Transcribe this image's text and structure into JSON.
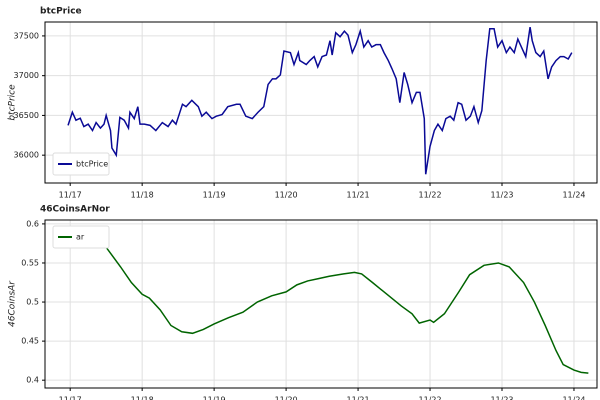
{
  "chart_data": [
    {
      "type": "line",
      "title": "btcPrice",
      "y_label": "btcPrice",
      "legend": "lower left",
      "grid": true,
      "xlim": [
        -0.35,
        7.32
      ],
      "xticks": [
        {
          "value": 0,
          "label": "11/17"
        },
        {
          "value": 1,
          "label": "11/18"
        },
        {
          "value": 2,
          "label": "11/19"
        },
        {
          "value": 3,
          "label": "11/20"
        },
        {
          "value": 4,
          "label": "11/21"
        },
        {
          "value": 5,
          "label": "11/22"
        },
        {
          "value": 6,
          "label": "11/23"
        },
        {
          "value": 7,
          "label": "11/24"
        }
      ],
      "ylim": [
        35650,
        37675
      ],
      "yticks": [
        36000,
        36500,
        37000,
        37500
      ],
      "x": [
        -0.03,
        0.03,
        0.08,
        0.14,
        0.19,
        0.25,
        0.31,
        0.36,
        0.42,
        0.47,
        0.5,
        0.56,
        0.58,
        0.64,
        0.69,
        0.75,
        0.81,
        0.83,
        0.89,
        0.94,
        0.97,
        1.03,
        1.11,
        1.19,
        1.28,
        1.36,
        1.42,
        1.47,
        1.56,
        1.61,
        1.69,
        1.78,
        1.83,
        1.89,
        1.97,
        2.03,
        2.11,
        2.19,
        2.31,
        2.36,
        2.44,
        2.53,
        2.61,
        2.69,
        2.75,
        2.81,
        2.86,
        2.92,
        2.97,
        3.06,
        3.11,
        3.17,
        3.19,
        3.28,
        3.33,
        3.39,
        3.44,
        3.5,
        3.56,
        3.61,
        3.64,
        3.69,
        3.75,
        3.81,
        3.86,
        3.92,
        3.97,
        4.03,
        4.08,
        4.14,
        4.19,
        4.25,
        4.31,
        4.36,
        4.42,
        4.47,
        4.53,
        4.58,
        4.64,
        4.69,
        4.75,
        4.81,
        4.86,
        4.92,
        4.94,
        5.0,
        5.06,
        5.11,
        5.17,
        5.22,
        5.28,
        5.33,
        5.39,
        5.44,
        5.5,
        5.56,
        5.61,
        5.67,
        5.72,
        5.78,
        5.83,
        5.89,
        5.94,
        6.0,
        6.06,
        6.11,
        6.17,
        6.22,
        6.28,
        6.33,
        6.39,
        6.42,
        6.47,
        6.53,
        6.58,
        6.64,
        6.69,
        6.75,
        6.81,
        6.86,
        6.92,
        6.97
      ],
      "series": [
        {
          "name": "btcPrice",
          "color": "#0a0a96",
          "values": [
            36375,
            36540,
            36440,
            36465,
            36360,
            36390,
            36310,
            36410,
            36340,
            36390,
            36500,
            36310,
            36090,
            36000,
            36475,
            36440,
            36340,
            36540,
            36460,
            36610,
            36390,
            36390,
            36375,
            36310,
            36410,
            36360,
            36440,
            36390,
            36640,
            36610,
            36690,
            36610,
            36490,
            36540,
            36460,
            36490,
            36510,
            36610,
            36640,
            36640,
            36490,
            36460,
            36540,
            36610,
            36890,
            36960,
            36960,
            37010,
            37310,
            37290,
            37140,
            37290,
            37190,
            37140,
            37190,
            37240,
            37110,
            37240,
            37260,
            37440,
            37260,
            37540,
            37490,
            37560,
            37510,
            37290,
            37390,
            37560,
            37360,
            37440,
            37360,
            37390,
            37390,
            37290,
            37190,
            37090,
            36960,
            36660,
            37040,
            36890,
            36660,
            36790,
            36790,
            36460,
            35760,
            36110,
            36310,
            36390,
            36310,
            36460,
            36490,
            36440,
            36660,
            36640,
            36440,
            36490,
            36610,
            36410,
            36560,
            37190,
            37590,
            37590,
            37360,
            37440,
            37290,
            37360,
            37290,
            37460,
            37340,
            37240,
            37610,
            37440,
            37290,
            37240,
            37310,
            36960,
            37110,
            37190,
            37240,
            37240,
            37210,
            37290
          ]
        }
      ]
    },
    {
      "type": "line",
      "title": "46CoinsArNor",
      "y_label": "46CoinsAr",
      "legend": "upper left",
      "grid": true,
      "xlim": [
        -0.35,
        7.32
      ],
      "xticks": [
        {
          "value": 0,
          "label": "11/17"
        },
        {
          "value": 1,
          "label": "11/18"
        },
        {
          "value": 2,
          "label": "11/19"
        },
        {
          "value": 3,
          "label": "11/20"
        },
        {
          "value": 4,
          "label": "11/21"
        },
        {
          "value": 5,
          "label": "11/22"
        },
        {
          "value": 6,
          "label": "11/23"
        },
        {
          "value": 7,
          "label": "11/24"
        }
      ],
      "ylim": [
        0.39,
        0.605
      ],
      "yticks": [
        0.4,
        0.45,
        0.5,
        0.55,
        0.6
      ],
      "x": [
        0.31,
        0.5,
        0.7,
        0.85,
        1.0,
        1.1,
        1.25,
        1.4,
        1.55,
        1.7,
        1.85,
        2.0,
        2.2,
        2.4,
        2.6,
        2.8,
        3.0,
        3.15,
        3.3,
        3.45,
        3.6,
        3.8,
        3.95,
        4.05,
        4.2,
        4.4,
        4.6,
        4.75,
        4.85,
        5.0,
        5.05,
        5.2,
        5.4,
        5.55,
        5.75,
        5.95,
        6.1,
        6.3,
        6.45,
        6.6,
        6.75,
        6.85,
        7.0,
        7.1,
        7.2
      ],
      "series": [
        {
          "name": "ar",
          "color": "#006400",
          "values": [
            0.586,
            0.57,
            0.545,
            0.525,
            0.51,
            0.505,
            0.49,
            0.47,
            0.462,
            0.46,
            0.465,
            0.472,
            0.48,
            0.487,
            0.5,
            0.508,
            0.513,
            0.522,
            0.527,
            0.53,
            0.533,
            0.536,
            0.538,
            0.536,
            0.525,
            0.51,
            0.495,
            0.485,
            0.473,
            0.477,
            0.474,
            0.485,
            0.513,
            0.535,
            0.547,
            0.55,
            0.545,
            0.525,
            0.5,
            0.47,
            0.438,
            0.42,
            0.413,
            0.41,
            0.409
          ]
        }
      ]
    }
  ]
}
